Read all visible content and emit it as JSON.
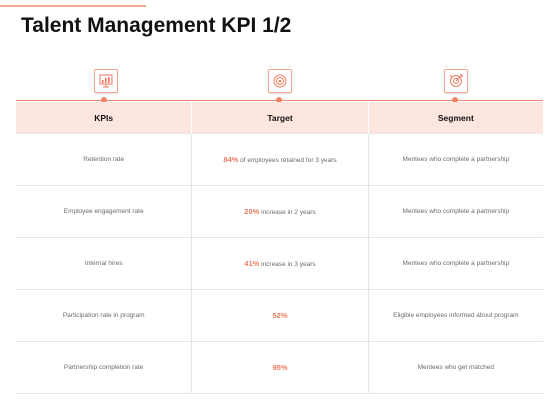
{
  "title": "Talent Management KPI 1/2",
  "accent_color": "#ef8469",
  "icons": [
    "presentation-chart-icon",
    "target-icon",
    "dartboard-arrow-icon"
  ],
  "headers": [
    "KPIs",
    "Target",
    "Segment"
  ],
  "rows": [
    {
      "kpi": "Retention rate",
      "pct": "84%",
      "target_text": " of employees retained for 3 years",
      "segment": "Mentees who complete a partnership"
    },
    {
      "kpi": "Employee engagement rate",
      "pct": "20%",
      "target_text": " increase in 2 years",
      "segment": "Mentees who complete a partnership"
    },
    {
      "kpi": "Internal hires",
      "pct": "41%",
      "target_text": " increase in 3 years",
      "segment": "Mentees who complete a partnership"
    },
    {
      "kpi": "Participation rate in program",
      "pct": "52%",
      "target_text": "",
      "segment": "Eligible employees informed about program"
    },
    {
      "kpi": "Partnership completion rate",
      "pct": "95%",
      "target_text": "",
      "segment": "Mentees who get matched"
    }
  ]
}
